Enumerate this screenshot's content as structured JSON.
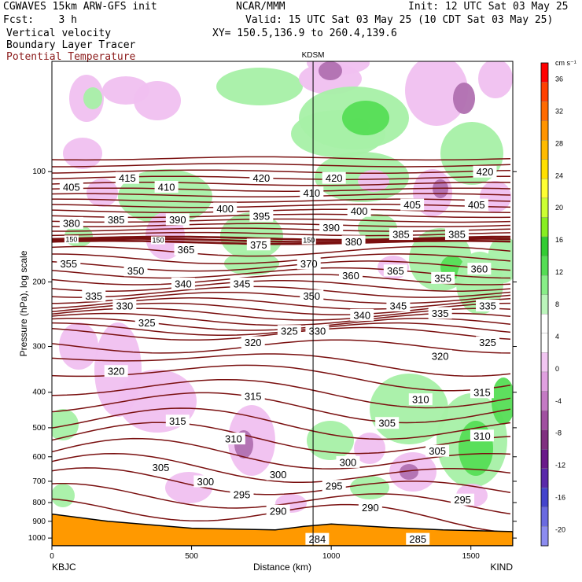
{
  "header": {
    "model": "CGWAVES 15km ARW-GFS init",
    "org": "NCAR/MMM",
    "init": "Init: 12 UTC Sat 03 May 25",
    "fcst": "Fcst:    3 h",
    "valid": "Valid: 15 UTC Sat 03 May 25 (10 CDT Sat 03 May 25)",
    "field1": "Vertical velocity",
    "field2": "Boundary Layer Tracer",
    "field3": "Potential Temperature",
    "xy": "XY= 150.5,136.9 to 260.4,139.6",
    "field3_color": "#8b1a1a"
  },
  "chart_data": {
    "type": "cross-section",
    "title": "",
    "xlabel": "Distance (km)",
    "ylabel": "Pressure (hPa), log scale",
    "xlim": [
      0,
      1650
    ],
    "ylim": [
      1050,
      50
    ],
    "x_ticks": [
      0,
      500,
      1000,
      1500
    ],
    "y_ticks": [
      100,
      200,
      300,
      400,
      500,
      600,
      700,
      800,
      900,
      1000
    ],
    "endpoints": {
      "left": "KBJC",
      "right": "KIND"
    },
    "marker": {
      "label": "KDSM",
      "x_km": 935
    },
    "theta_color": "#7a1010",
    "theta_labels": [
      {
        "v": "405",
        "x": 70,
        "p": 110
      },
      {
        "v": "415",
        "x": 270,
        "p": 104
      },
      {
        "v": "410",
        "x": 410,
        "p": 110
      },
      {
        "v": "420",
        "x": 750,
        "p": 104
      },
      {
        "v": "410",
        "x": 930,
        "p": 114
      },
      {
        "v": "420",
        "x": 1010,
        "p": 104
      },
      {
        "v": "420",
        "x": 1550,
        "p": 100
      },
      {
        "v": "400",
        "x": 620,
        "p": 126
      },
      {
        "v": "395",
        "x": 750,
        "p": 132
      },
      {
        "v": "400",
        "x": 1100,
        "p": 128
      },
      {
        "v": "405",
        "x": 1290,
        "p": 123
      },
      {
        "v": "405",
        "x": 1520,
        "p": 123
      },
      {
        "v": "380",
        "x": 70,
        "p": 138
      },
      {
        "v": "385",
        "x": 230,
        "p": 135
      },
      {
        "v": "390",
        "x": 450,
        "p": 135
      },
      {
        "v": "390",
        "x": 1000,
        "p": 142
      },
      {
        "v": "385",
        "x": 1250,
        "p": 148
      },
      {
        "v": "385",
        "x": 1450,
        "p": 148
      },
      {
        "v": "150",
        "x": 70,
        "p": 153
      },
      {
        "v": "150",
        "x": 380,
        "p": 154
      },
      {
        "v": "150",
        "x": 920,
        "p": 154
      },
      {
        "v": "365",
        "x": 480,
        "p": 163
      },
      {
        "v": "375",
        "x": 740,
        "p": 158
      },
      {
        "v": "380",
        "x": 1080,
        "p": 155
      },
      {
        "v": "355",
        "x": 60,
        "p": 178
      },
      {
        "v": "350",
        "x": 300,
        "p": 186
      },
      {
        "v": "370",
        "x": 920,
        "p": 178
      },
      {
        "v": "360",
        "x": 1070,
        "p": 192
      },
      {
        "v": "365",
        "x": 1230,
        "p": 186
      },
      {
        "v": "355",
        "x": 1400,
        "p": 195
      },
      {
        "v": "360",
        "x": 1530,
        "p": 184
      },
      {
        "v": "335",
        "x": 150,
        "p": 218
      },
      {
        "v": "330",
        "x": 260,
        "p": 232
      },
      {
        "v": "340",
        "x": 470,
        "p": 202
      },
      {
        "v": "345",
        "x": 680,
        "p": 202
      },
      {
        "v": "350",
        "x": 930,
        "p": 218
      },
      {
        "v": "340",
        "x": 1110,
        "p": 246
      },
      {
        "v": "345",
        "x": 1240,
        "p": 232
      },
      {
        "v": "335",
        "x": 1390,
        "p": 243
      },
      {
        "v": "335",
        "x": 1560,
        "p": 232
      },
      {
        "v": "325",
        "x": 340,
        "p": 258
      },
      {
        "v": "325",
        "x": 850,
        "p": 272
      },
      {
        "v": "330",
        "x": 950,
        "p": 272
      },
      {
        "v": "325",
        "x": 1560,
        "p": 292
      },
      {
        "v": "320",
        "x": 720,
        "p": 292
      },
      {
        "v": "320",
        "x": 1390,
        "p": 318
      },
      {
        "v": "320",
        "x": 230,
        "p": 350
      },
      {
        "v": "315",
        "x": 720,
        "p": 410
      },
      {
        "v": "310",
        "x": 1320,
        "p": 418
      },
      {
        "v": "315",
        "x": 1540,
        "p": 400
      },
      {
        "v": "315",
        "x": 450,
        "p": 478
      },
      {
        "v": "305",
        "x": 1200,
        "p": 485
      },
      {
        "v": "310",
        "x": 1540,
        "p": 525
      },
      {
        "v": "310",
        "x": 650,
        "p": 535
      },
      {
        "v": "305",
        "x": 1380,
        "p": 578
      },
      {
        "v": "305",
        "x": 390,
        "p": 640
      },
      {
        "v": "300",
        "x": 1060,
        "p": 620
      },
      {
        "v": "300",
        "x": 550,
        "p": 700
      },
      {
        "v": "300",
        "x": 810,
        "p": 670
      },
      {
        "v": "295",
        "x": 680,
        "p": 760
      },
      {
        "v": "295",
        "x": 1010,
        "p": 720
      },
      {
        "v": "290",
        "x": 810,
        "p": 842
      },
      {
        "v": "290",
        "x": 1140,
        "p": 825
      },
      {
        "v": "295",
        "x": 1470,
        "p": 785
      },
      {
        "v": "284",
        "x": 950,
        "p": 1005
      },
      {
        "v": "285",
        "x": 1310,
        "p": 1005
      }
    ],
    "legend": {
      "unit": "cm s⁻¹",
      "labels": [
        36,
        32,
        28,
        24,
        20,
        16,
        12,
        8,
        4,
        0,
        -4,
        -8,
        -12,
        -16,
        -20
      ],
      "colors": [
        "#ff0000",
        "#ff4000",
        "#ff6a00",
        "#ff9400",
        "#ffbb00",
        "#ffe000",
        "#ffff33",
        "#ccff33",
        "#88ee22",
        "#33cc33",
        "#55dd55",
        "#88ee88",
        "#bbf5bb",
        "#ffffff",
        "#ffffff",
        "#f2c6f2",
        "#e0a0e0",
        "#c47ac4",
        "#a050a0",
        "#803080",
        "#6a1a8a",
        "#5a2aaa",
        "#4444cc",
        "#6a6ae0",
        "#8c8cf0"
      ],
      "green_fill": "#a6f0a6",
      "green_dark": "#55dd55",
      "pink_fill": "#f0c0f0",
      "purple_fill": "#b070b0",
      "terrain_color": "#ff9900"
    }
  }
}
